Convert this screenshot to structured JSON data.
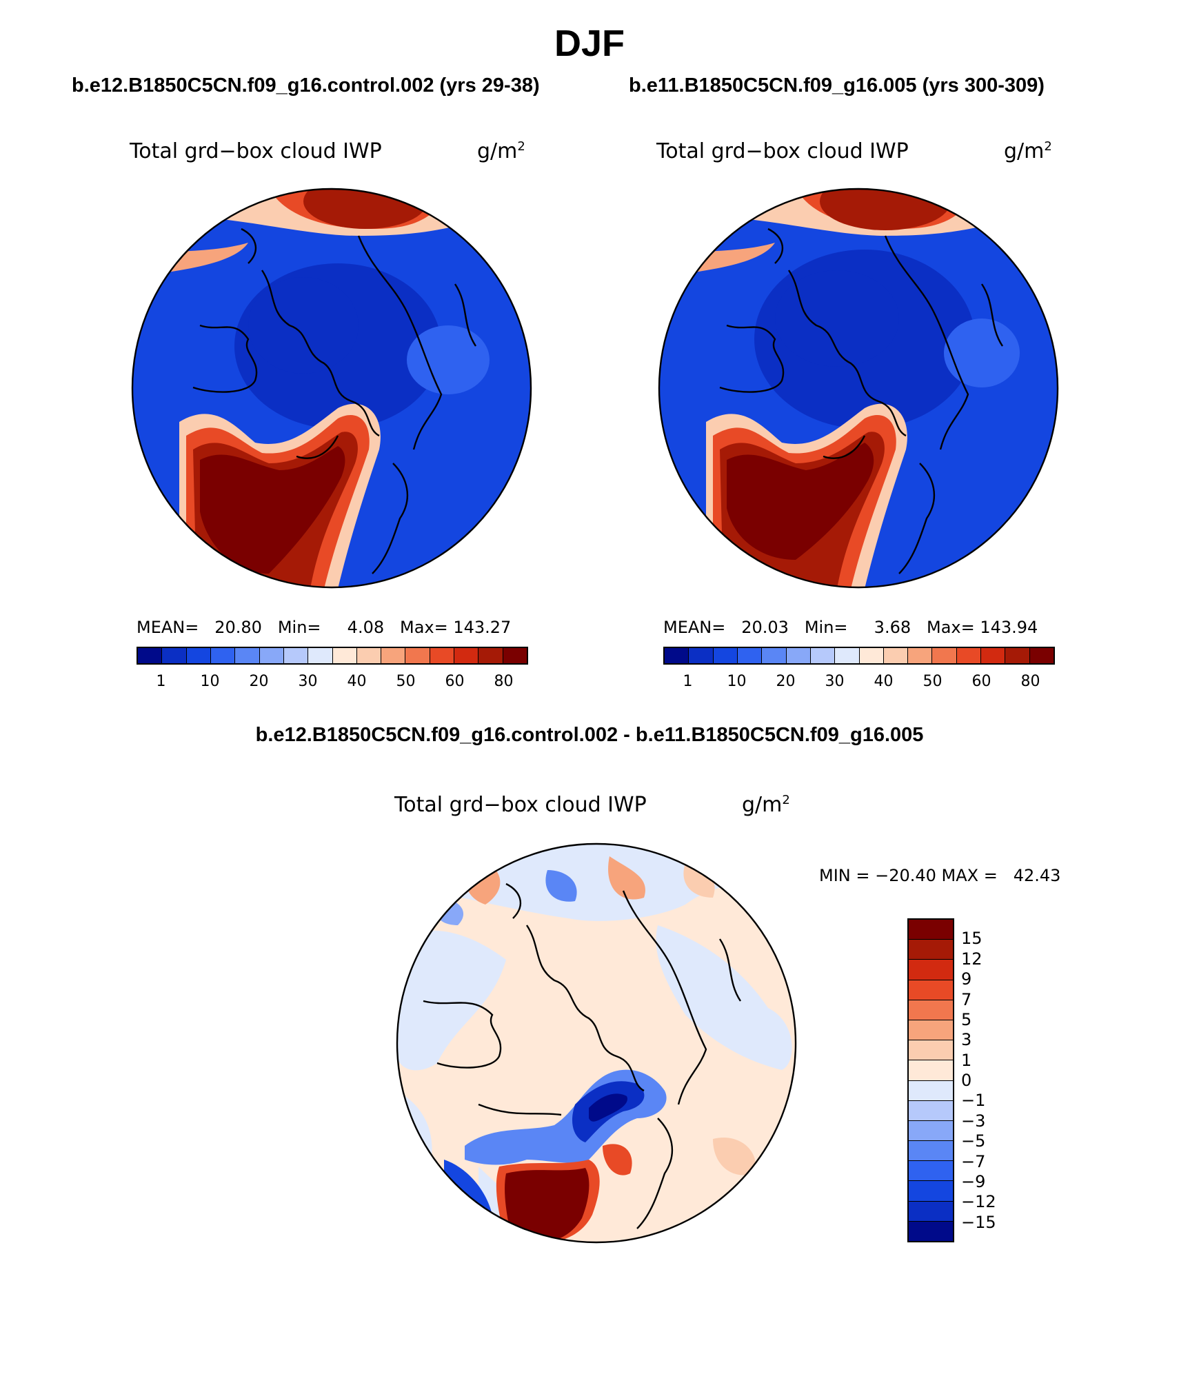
{
  "title": "DJF",
  "panels": [
    {
      "case": "b.e12.B1850C5CN.f09_g16.control.002 (yrs 29-38)",
      "field": "Total grd−box cloud IWP",
      "unit_base": "g/m",
      "unit_exp": "2",
      "stats": "MEAN=   20.80   Min=     4.08   Max= 143.27",
      "levels": [
        "1",
        "10",
        "20",
        "30",
        "40",
        "50",
        "60",
        "80"
      ],
      "colors": [
        "#000a8a",
        "#0b2fc4",
        "#1446e0",
        "#2f62f0",
        "#5a86f5",
        "#88a8f8",
        "#b6c9fb",
        "#dfe9fc",
        "#ffe9d8",
        "#fbcdb0",
        "#f7a47c",
        "#f1774e",
        "#e84a26",
        "#d22a10",
        "#a51a06",
        "#7a0000"
      ]
    },
    {
      "case": "b.e11.B1850C5CN.f09_g16.005 (yrs 300-309)",
      "field": "Total grd−box cloud IWP",
      "unit_base": "g/m",
      "unit_exp": "2",
      "stats": "MEAN=   20.03   Min=     3.68   Max= 143.94",
      "levels": [
        "1",
        "10",
        "20",
        "30",
        "40",
        "50",
        "60",
        "80"
      ],
      "colors": [
        "#000a8a",
        "#0b2fc4",
        "#1446e0",
        "#2f62f0",
        "#5a86f5",
        "#88a8f8",
        "#b6c9fb",
        "#dfe9fc",
        "#ffe9d8",
        "#fbcdb0",
        "#f7a47c",
        "#f1774e",
        "#e84a26",
        "#d22a10",
        "#a51a06",
        "#7a0000"
      ]
    }
  ],
  "difference": {
    "title": "b.e12.B1850C5CN.f09_g16.control.002 - b.e11.B1850C5CN.f09_g16.005",
    "field": "Total grd−box cloud IWP",
    "unit_base": "g/m",
    "unit_exp": "2",
    "stats": "MIN = −20.40 MAX =   42.43",
    "levels": [
      "15",
      "12",
      "9",
      "7",
      "5",
      "3",
      "1",
      "0",
      "−1",
      "−3",
      "−5",
      "−7",
      "−9",
      "−12",
      "−15"
    ],
    "colors": [
      "#7a0000",
      "#a51a06",
      "#d22a10",
      "#e84a26",
      "#f1774e",
      "#f7a47c",
      "#fbcdb0",
      "#ffe9d8",
      "#dfe9fc",
      "#b6c9fb",
      "#88a8f8",
      "#5a86f5",
      "#2f62f0",
      "#1446e0",
      "#0b2fc4",
      "#000a8a"
    ]
  }
}
